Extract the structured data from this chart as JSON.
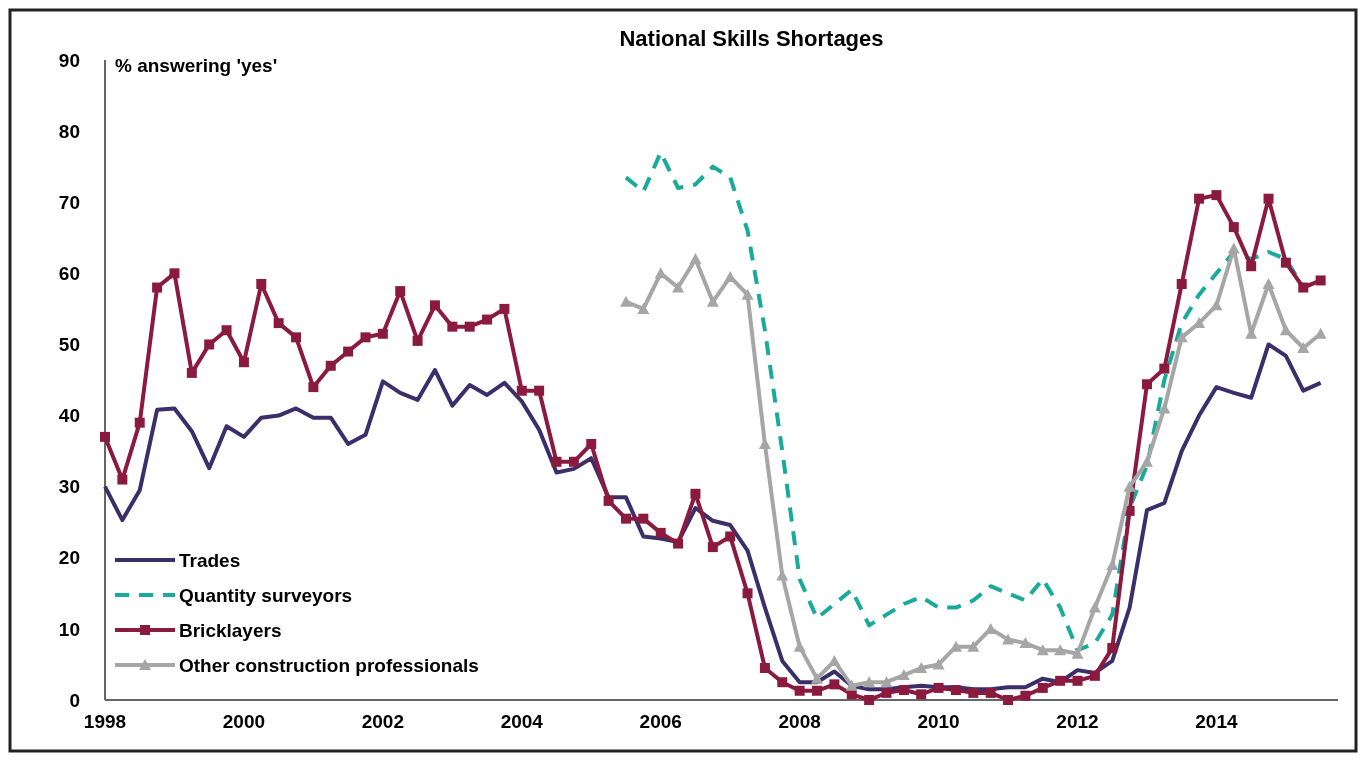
{
  "chart_data": {
    "type": "line",
    "title": "National Skills Shortages",
    "ylabel": "% answering 'yes'",
    "x": [
      1998,
      1998.25,
      1998.5,
      1998.75,
      1999,
      1999.25,
      1999.5,
      1999.75,
      2000,
      2000.25,
      2000.5,
      2000.75,
      2001,
      2001.25,
      2001.5,
      2001.75,
      2002,
      2002.25,
      2002.5,
      2002.75,
      2003,
      2003.25,
      2003.5,
      2003.75,
      2004,
      2004.25,
      2004.5,
      2004.75,
      2005,
      2005.25,
      2005.5,
      2005.75,
      2006,
      2006.25,
      2006.5,
      2006.75,
      2007,
      2007.25,
      2007.5,
      2007.75,
      2008,
      2008.25,
      2008.5,
      2008.75,
      2009,
      2009.25,
      2009.5,
      2009.75,
      2010,
      2010.25,
      2010.5,
      2010.75,
      2011,
      2011.25,
      2011.5,
      2011.75,
      2012,
      2012.25,
      2012.5,
      2012.75,
      2013,
      2013.25,
      2013.5,
      2013.75,
      2014,
      2014.25,
      2014.5,
      2014.75,
      2015,
      2015.25,
      2015.5
    ],
    "xlim": [
      1998,
      2015.75
    ],
    "xticks": [
      1998,
      2000,
      2002,
      2004,
      2006,
      2008,
      2010,
      2012,
      2014
    ],
    "ylim": [
      0,
      90
    ],
    "yticks": [
      0,
      10,
      20,
      30,
      40,
      50,
      60,
      70,
      80,
      90
    ],
    "legend": "bottom left",
    "grid": false,
    "series": [
      {
        "name": "Trades",
        "color": "#3b2f6b",
        "marker": "none",
        "line_style": "solid",
        "values": [
          30,
          25.3,
          29.5,
          40.8,
          41,
          37.8,
          32.6,
          38.5,
          37,
          39.7,
          40,
          41,
          39.7,
          39.7,
          36,
          37.3,
          44.8,
          43.2,
          42.2,
          46.4,
          41.4,
          44.3,
          42.9,
          44.6,
          42,
          38,
          32,
          32.5,
          34,
          28.5,
          28.5,
          23,
          22.7,
          22.2,
          27,
          25.2,
          24.6,
          21,
          13,
          5.5,
          2.5,
          2.5,
          4,
          2,
          1.5,
          1.5,
          1.8,
          2,
          1.8,
          1.8,
          1.5,
          1.5,
          1.8,
          1.8,
          3,
          2.5,
          4.2,
          3.8,
          5.5,
          13,
          26.7,
          27.7,
          35,
          40,
          44,
          43.2,
          42.5,
          50,
          48.4,
          43.5,
          44.6
        ]
      },
      {
        "name": "Quantity surveyors",
        "color": "#1aaa9b",
        "marker": "none",
        "line_style": "dashed",
        "values": [
          null,
          null,
          null,
          null,
          null,
          null,
          null,
          null,
          null,
          null,
          null,
          null,
          null,
          null,
          null,
          null,
          null,
          null,
          null,
          null,
          null,
          null,
          null,
          null,
          null,
          null,
          null,
          null,
          null,
          null,
          73.5,
          71.5,
          77,
          72,
          72.5,
          75,
          73.5,
          66,
          52,
          35,
          17,
          11.5,
          13.5,
          15.5,
          10.5,
          12,
          13.5,
          14.5,
          13,
          13,
          14,
          16,
          15,
          14,
          17,
          13,
          7,
          8,
          12,
          27,
          33,
          45,
          53,
          57,
          60,
          63,
          62,
          63,
          62,
          58,
          59
        ]
      },
      {
        "name": "Bricklayers",
        "color": "#8b1a3f",
        "marker": "square",
        "line_style": "solid",
        "values": [
          37,
          31,
          39,
          58,
          60,
          46,
          50,
          52,
          47.5,
          58.5,
          53,
          51,
          44,
          47,
          49,
          51,
          51.5,
          57.5,
          50.5,
          55.5,
          52.5,
          52.5,
          53.5,
          55,
          43.5,
          43.5,
          33.5,
          33.5,
          36,
          28,
          25.5,
          25.5,
          23.5,
          22,
          29,
          21.5,
          23,
          15,
          4.5,
          2.5,
          1.3,
          1.3,
          2.2,
          0.8,
          0,
          1,
          1.4,
          0.8,
          1.7,
          1.4,
          1,
          1,
          0,
          0.6,
          1.7,
          2.7,
          2.7,
          3.4,
          7.3,
          26.6,
          44.4,
          46.6,
          58.5,
          70.5,
          71,
          66.5,
          61,
          70.5,
          61.5,
          58,
          59
        ]
      },
      {
        "name": "Other construction professionals",
        "color": "#a6a6a6",
        "marker": "triangle",
        "line_style": "solid",
        "values": [
          null,
          null,
          null,
          null,
          null,
          null,
          null,
          null,
          null,
          null,
          null,
          null,
          null,
          null,
          null,
          null,
          null,
          null,
          null,
          null,
          null,
          null,
          null,
          null,
          null,
          null,
          null,
          null,
          null,
          null,
          56,
          55,
          60,
          58,
          62,
          56,
          59.5,
          57,
          36,
          17.5,
          7.5,
          3,
          5.5,
          2,
          2.5,
          2.5,
          3.5,
          4.5,
          5,
          7.5,
          7.5,
          10,
          8.5,
          8,
          7,
          7,
          6.5,
          13,
          19,
          30,
          33.5,
          41,
          51,
          53,
          55.5,
          63.5,
          51.5,
          58.5,
          52,
          49.5,
          51.5
        ]
      }
    ]
  }
}
